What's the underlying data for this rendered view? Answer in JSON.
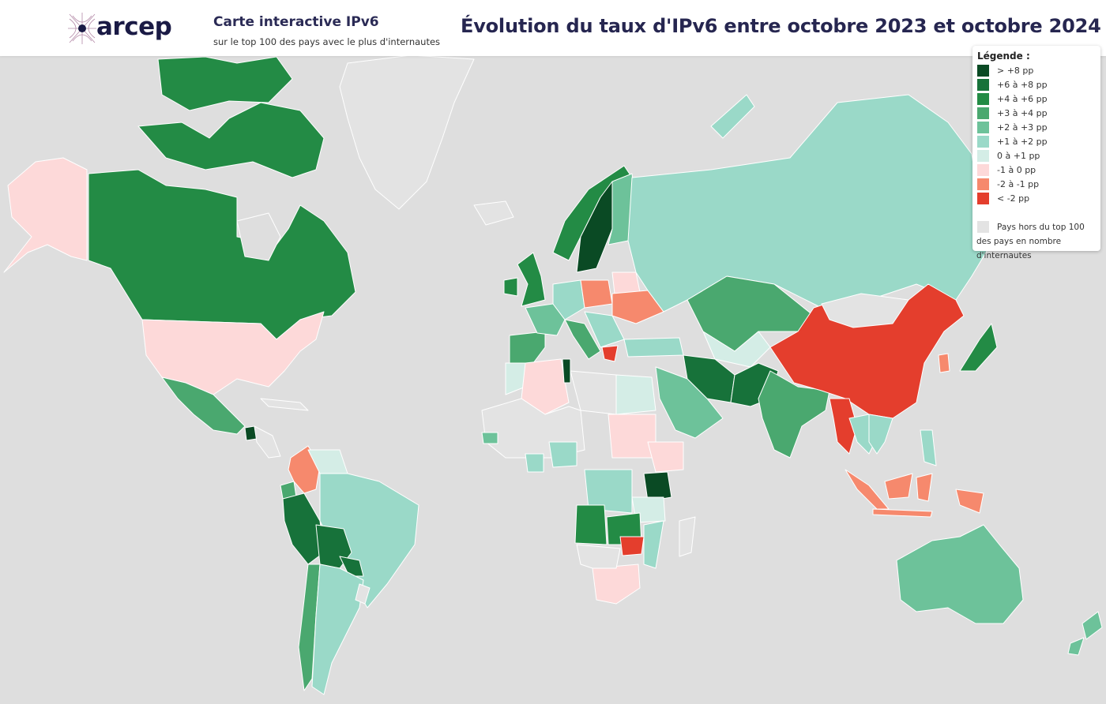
{
  "header": {
    "logo_text": "arcep",
    "app_title": "Carte interactive IPv6",
    "app_subtitle": "sur le top 100 des pays avec le plus d'internautes",
    "map_title": "Évolution du taux d'IPv6 entre octobre 2023 et octobre 2024"
  },
  "legend": {
    "title": "Légende :",
    "items": [
      {
        "label": "> +8 pp",
        "color": "#0a4a24"
      },
      {
        "label": "+6 à +8 pp",
        "color": "#17723a"
      },
      {
        "label": "+4 à +6 pp",
        "color": "#238b45"
      },
      {
        "label": "+3 à +4 pp",
        "color": "#4aa86f"
      },
      {
        "label": "+2 à +3 pp",
        "color": "#6dc29a"
      },
      {
        "label": "+1 à +2 pp",
        "color": "#9ad9c8"
      },
      {
        "label": "0 à +1 pp",
        "color": "#d4ede6"
      },
      {
        "label": "-1 à 0 pp",
        "color": "#fdd9d9"
      },
      {
        "label": "-2 à -1 pp",
        "color": "#f6896d"
      },
      {
        "label": "< -2 pp",
        "color": "#e43e2d"
      }
    ],
    "note": "Pays hors du top 100 des pays en nombre d'internautes",
    "note_color": "#e3e3e3"
  },
  "colors": {
    "ocean": "#dedede",
    "border": "#ffffff"
  }
}
